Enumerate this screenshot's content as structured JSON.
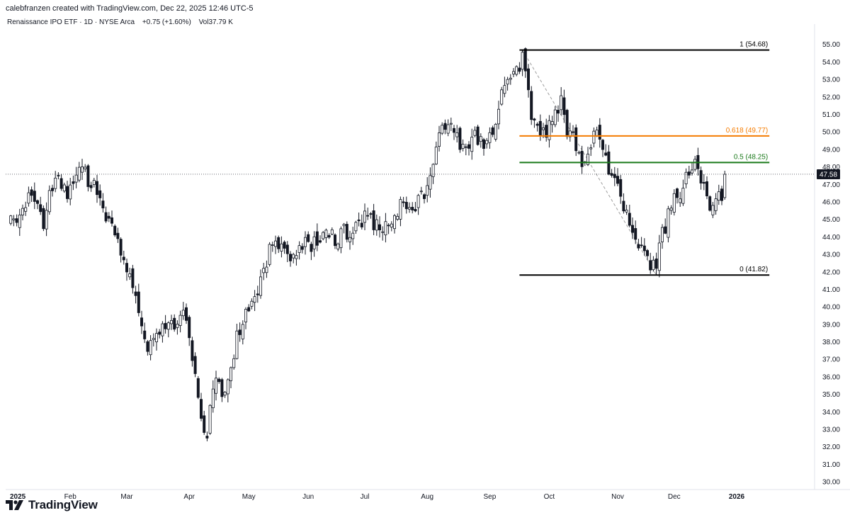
{
  "header": {
    "attribution": "calebfranzen created with TradingView.com, Dec 22, 2025 12:46 UTC-5"
  },
  "legend": {
    "symbol": "Renaissance IPO ETF · 1D · NYSE Arca",
    "change": "+0.75 (+1.60%)",
    "volume": "Vol37.79 K"
  },
  "logo": {
    "text": "TradingView",
    "icon": "tradingview-logo-icon"
  },
  "colors": {
    "candle_body_up": "#ffffff",
    "candle_body_down": "#131722",
    "candle_outline": "#131722",
    "fib_level_1": "#000000",
    "fib_level_0618": "#f57c00",
    "fib_level_05": "#1b7a1b",
    "fib_level_0": "#000000",
    "fib_diagonal": "#9e9e9e",
    "price_tag_bg": "#131722",
    "price_tag_text": "#ffffff"
  },
  "chart_data": {
    "type": "candlestick",
    "title": "",
    "ylim": [
      29.6,
      55.5
    ],
    "y_ticks": [
      "30.00",
      "31.00",
      "32.00",
      "33.00",
      "34.00",
      "35.00",
      "36.00",
      "37.00",
      "38.00",
      "39.00",
      "40.00",
      "41.00",
      "42.00",
      "43.00",
      "44.00",
      "45.00",
      "46.00",
      "47.00",
      "48.00",
      "49.00",
      "50.00",
      "51.00",
      "52.00",
      "53.00",
      "54.00",
      "55.00"
    ],
    "x_ticks": [
      {
        "label": "2025",
        "index": 0,
        "bold": true
      },
      {
        "label": "Feb",
        "index": 21
      },
      {
        "label": "Mar",
        "index": 40
      },
      {
        "label": "Apr",
        "index": 61
      },
      {
        "label": "May",
        "index": 81
      },
      {
        "label": "Jun",
        "index": 101
      },
      {
        "label": "Jul",
        "index": 120
      },
      {
        "label": "Aug",
        "index": 141
      },
      {
        "label": "Sep",
        "index": 162
      },
      {
        "label": "Oct",
        "index": 182
      },
      {
        "label": "Nov",
        "index": 205
      },
      {
        "label": "Dec",
        "index": 224
      },
      {
        "label": "2026",
        "index": 245,
        "bold": true
      }
    ],
    "last_price": {
      "value": 47.58,
      "label": "47.58"
    },
    "fib_levels": [
      {
        "ratio": "1",
        "price": 54.68,
        "label": "1 (54.68)",
        "color_key": "fib_level_1"
      },
      {
        "ratio": "0.618",
        "price": 49.77,
        "label": "0.618 (49.77)",
        "color_key": "fib_level_0618"
      },
      {
        "ratio": "0.5",
        "price": 48.25,
        "label": "0.5 (48.25)",
        "color_key": "fib_level_05"
      },
      {
        "ratio": "0",
        "price": 41.82,
        "label": "0 (41.82)",
        "color_key": "fib_level_0"
      }
    ],
    "fib_range": {
      "from_index": 172,
      "to_index": 256,
      "diagonal_from": {
        "index": 173,
        "price": 54.68
      },
      "diagonal_to": {
        "index": 218,
        "price": 41.82
      }
    },
    "anchors": [
      [
        0,
        44.9
      ],
      [
        5,
        45.6
      ],
      [
        8,
        46.2
      ],
      [
        12,
        45.0
      ],
      [
        16,
        47.5
      ],
      [
        20,
        46.7
      ],
      [
        25,
        48.2
      ],
      [
        28,
        47.0
      ],
      [
        32,
        45.8
      ],
      [
        36,
        44.2
      ],
      [
        40,
        42.3
      ],
      [
        44,
        40.0
      ],
      [
        47,
        37.9
      ],
      [
        50,
        38.6
      ],
      [
        53,
        39.2
      ],
      [
        56,
        38.8
      ],
      [
        59,
        40.0
      ],
      [
        61,
        38.0
      ],
      [
        63,
        35.9
      ],
      [
        65,
        33.2
      ],
      [
        67,
        32.6
      ],
      [
        69,
        35.8
      ],
      [
        71,
        35.2
      ],
      [
        73,
        35.5
      ],
      [
        75,
        36.6
      ],
      [
        77,
        38.5
      ],
      [
        80,
        39.5
      ],
      [
        83,
        40.8
      ],
      [
        86,
        41.8
      ],
      [
        88,
        43.2
      ],
      [
        90,
        43.7
      ],
      [
        92,
        43.8
      ],
      [
        95,
        42.8
      ],
      [
        98,
        43.3
      ],
      [
        101,
        43.5
      ],
      [
        104,
        43.9
      ],
      [
        107,
        44.1
      ],
      [
        110,
        44.0
      ],
      [
        113,
        44.3
      ],
      [
        116,
        44.6
      ],
      [
        119,
        45.0
      ],
      [
        122,
        45.2
      ],
      [
        125,
        44.4
      ],
      [
        128,
        44.9
      ],
      [
        131,
        45.6
      ],
      [
        134,
        46.1
      ],
      [
        137,
        45.8
      ],
      [
        140,
        46.5
      ],
      [
        142,
        47.9
      ],
      [
        145,
        49.6
      ],
      [
        148,
        50.3
      ],
      [
        150,
        50.1
      ],
      [
        152,
        49.2
      ],
      [
        154,
        48.7
      ],
      [
        156,
        49.5
      ],
      [
        158,
        49.8
      ],
      [
        160,
        48.8
      ],
      [
        162,
        49.6
      ],
      [
        164,
        50.9
      ],
      [
        166,
        52.2
      ],
      [
        168,
        53.0
      ],
      [
        170,
        53.3
      ],
      [
        172,
        53.8
      ],
      [
        173,
        54.5
      ],
      [
        175,
        52.0
      ],
      [
        177,
        50.5
      ],
      [
        179,
        49.8
      ],
      [
        181,
        50.0
      ],
      [
        183,
        50.7
      ],
      [
        185,
        51.5
      ],
      [
        186,
        52.0
      ],
      [
        188,
        49.7
      ],
      [
        190,
        49.6
      ],
      [
        192,
        48.4
      ],
      [
        194,
        48.0
      ],
      [
        196,
        49.6
      ],
      [
        198,
        50.2
      ],
      [
        200,
        49.3
      ],
      [
        202,
        48.1
      ],
      [
        204,
        47.8
      ],
      [
        206,
        46.7
      ],
      [
        208,
        45.2
      ],
      [
        210,
        44.0
      ],
      [
        212,
        43.3
      ],
      [
        214,
        43.0
      ],
      [
        216,
        42.6
      ],
      [
        218,
        43.2
      ],
      [
        220,
        44.2
      ],
      [
        222,
        45.2
      ],
      [
        224,
        46.0
      ],
      [
        226,
        46.5
      ],
      [
        228,
        47.7
      ],
      [
        230,
        48.1
      ],
      [
        232,
        48.3
      ],
      [
        234,
        46.9
      ],
      [
        236,
        45.3
      ],
      [
        238,
        45.7
      ],
      [
        240,
        46.6
      ],
      [
        241,
        47.6
      ]
    ],
    "index_count": 256,
    "seed": 20251222
  }
}
